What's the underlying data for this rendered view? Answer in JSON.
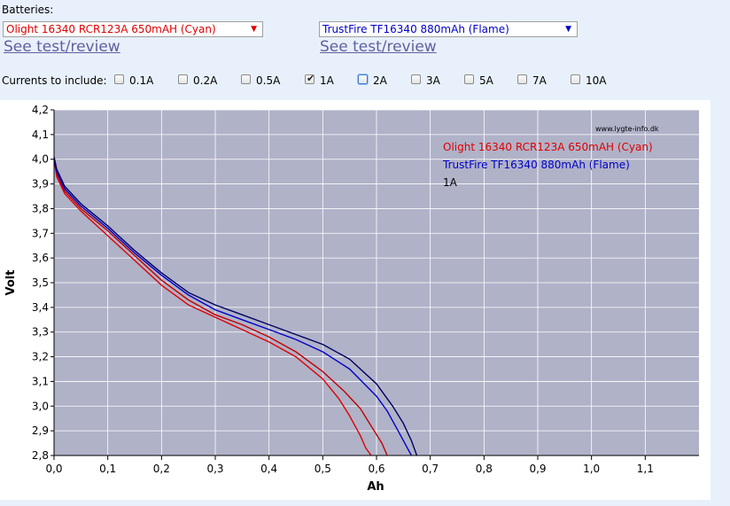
{
  "batteries_label": "Batteries:",
  "battery1": {
    "selected": "Olight 16340 RCR123A 650mAH (Cyan)",
    "link": "See test/review",
    "color": "#e00000"
  },
  "battery2": {
    "selected": "TrustFire TF16340 880mAh (Flame)",
    "link": "See test/review",
    "color": "#0000c8"
  },
  "currents": {
    "label": "Currents to include:",
    "options": [
      {
        "label": "0.1A",
        "checked": false
      },
      {
        "label": "0.2A",
        "checked": false
      },
      {
        "label": "0.5A",
        "checked": false
      },
      {
        "label": "1A",
        "checked": true
      },
      {
        "label": "2A",
        "checked": false,
        "focused": true
      },
      {
        "label": "3A",
        "checked": false
      },
      {
        "label": "5A",
        "checked": false
      },
      {
        "label": "7A",
        "checked": false
      },
      {
        "label": "10A",
        "checked": false
      }
    ]
  },
  "chart_data": {
    "type": "line",
    "watermark": "www.lygte-info.dk",
    "xlabel": "Ah",
    "ylabel": "Volt",
    "xlim": [
      0,
      1.2
    ],
    "ylim": [
      2.8,
      4.2
    ],
    "x_ticks": [
      "0,0",
      "0,1",
      "0,2",
      "0,3",
      "0,4",
      "0,5",
      "0,6",
      "0,7",
      "0,8",
      "0,9",
      "1,0",
      "1,1"
    ],
    "y_ticks": [
      "2,8",
      "2,9",
      "3,0",
      "3,1",
      "3,2",
      "3,3",
      "3,4",
      "3,5",
      "3,6",
      "3,7",
      "3,8",
      "3,9",
      "4,0",
      "4,1",
      "4,2"
    ],
    "grid": true,
    "legend_position": "top-right",
    "legend": [
      {
        "text": "Olight 16340 RCR123A 650mAH (Cyan)",
        "color": "#e00000"
      },
      {
        "text": "TrustFire TF16340 880mAh (Flame)",
        "color": "#0000c8"
      },
      {
        "text": "1A",
        "color": "#000000"
      }
    ],
    "background": "#b0b2c8",
    "series": [
      {
        "color": "#e00000",
        "x": [
          0,
          0.005,
          0.02,
          0.05,
          0.1,
          0.15,
          0.2,
          0.25,
          0.3,
          0.35,
          0.4,
          0.45,
          0.5,
          0.53,
          0.55,
          0.57,
          0.58,
          0.59
        ],
        "y": [
          4.0,
          3.93,
          3.86,
          3.79,
          3.69,
          3.59,
          3.49,
          3.41,
          3.36,
          3.31,
          3.26,
          3.2,
          3.11,
          3.03,
          2.96,
          2.88,
          2.83,
          2.8
        ]
      },
      {
        "color": "#c00000",
        "x": [
          0,
          0.005,
          0.02,
          0.05,
          0.1,
          0.15,
          0.2,
          0.25,
          0.3,
          0.35,
          0.4,
          0.45,
          0.5,
          0.54,
          0.57,
          0.59,
          0.61,
          0.62
        ],
        "y": [
          4.0,
          3.94,
          3.87,
          3.8,
          3.71,
          3.61,
          3.51,
          3.43,
          3.37,
          3.33,
          3.28,
          3.22,
          3.14,
          3.06,
          2.99,
          2.92,
          2.85,
          2.8
        ]
      },
      {
        "color": "#0000c8",
        "x": [
          0,
          0.005,
          0.02,
          0.05,
          0.1,
          0.15,
          0.2,
          0.25,
          0.3,
          0.35,
          0.4,
          0.45,
          0.5,
          0.55,
          0.6,
          0.62,
          0.64,
          0.655,
          0.665
        ],
        "y": [
          4.0,
          3.95,
          3.88,
          3.81,
          3.72,
          3.62,
          3.53,
          3.45,
          3.39,
          3.35,
          3.31,
          3.27,
          3.22,
          3.15,
          3.04,
          2.98,
          2.9,
          2.84,
          2.8
        ]
      },
      {
        "color": "#000060",
        "x": [
          0,
          0.005,
          0.02,
          0.05,
          0.1,
          0.15,
          0.2,
          0.25,
          0.3,
          0.35,
          0.4,
          0.45,
          0.5,
          0.55,
          0.6,
          0.63,
          0.65,
          0.665,
          0.675
        ],
        "y": [
          4.01,
          3.96,
          3.89,
          3.82,
          3.73,
          3.63,
          3.54,
          3.46,
          3.41,
          3.37,
          3.33,
          3.29,
          3.25,
          3.19,
          3.09,
          3.0,
          2.93,
          2.86,
          2.8
        ]
      }
    ]
  }
}
